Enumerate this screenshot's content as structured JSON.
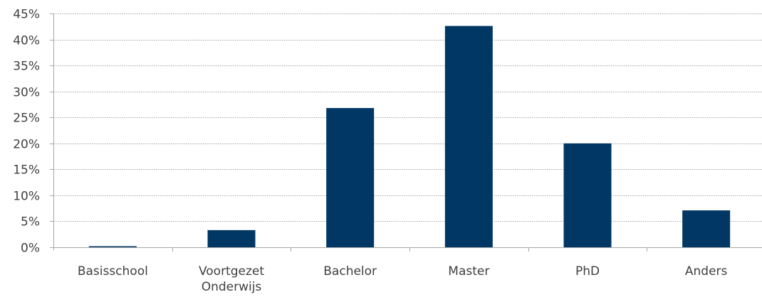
{
  "chart_data": {
    "type": "bar",
    "categories": [
      [
        "Basisschool"
      ],
      [
        "Voortgezet",
        "Onderwijs"
      ],
      [
        "Bachelor"
      ],
      [
        "Master"
      ],
      [
        "PhD"
      ],
      [
        "Anders"
      ]
    ],
    "values": [
      0.2,
      3.3,
      26.8,
      42.6,
      20.0,
      7.1
    ],
    "y_ticks": [
      "0%",
      "5%",
      "10%",
      "15%",
      "20%",
      "25%",
      "30%",
      "35%",
      "40%",
      "45%"
    ],
    "ylim": [
      0,
      45
    ],
    "y_unit": "%",
    "grid": true,
    "legend": false,
    "bar_color": "#003764",
    "axis_color": "#a6a6a6",
    "grid_color": "#a6a6a6"
  }
}
